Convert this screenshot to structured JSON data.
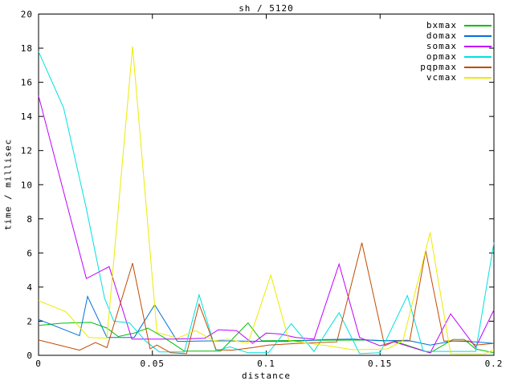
{
  "chart_data": {
    "type": "line",
    "title": "sh / 5120",
    "xlabel": "distance",
    "ylabel": "time / millisec",
    "xlim": [
      0,
      0.2
    ],
    "ylim": [
      0,
      20
    ],
    "grid": false,
    "legend_position": "top-right-inside",
    "axis_color": "#000000",
    "background_color": "#ffffff",
    "x_ticks": [
      0,
      0.05,
      0.1,
      0.15,
      0.2
    ],
    "x_tick_labels": [
      "0",
      "0.05",
      "0.1",
      "0.15",
      "0.2"
    ],
    "y_ticks": [
      0,
      2,
      4,
      6,
      8,
      10,
      12,
      14,
      16,
      18,
      20
    ],
    "y_tick_labels": [
      "0",
      "2",
      "4",
      "6",
      "8",
      "10",
      "12",
      "14",
      "16",
      "18",
      "20"
    ],
    "series": [
      {
        "name": "bxmax",
        "color": "#00c000",
        "points": [
          [
            0,
            1.75
          ],
          [
            0.01,
            1.88
          ],
          [
            0.023,
            1.93
          ],
          [
            0.03,
            1.6
          ],
          [
            0.035,
            1.1
          ],
          [
            0.042,
            1.3
          ],
          [
            0.048,
            1.6
          ],
          [
            0.055,
            1.05
          ],
          [
            0.064,
            0.25
          ],
          [
            0.08,
            0.25
          ],
          [
            0.092,
            1.9
          ],
          [
            0.098,
            0.85
          ],
          [
            0.12,
            0.88
          ],
          [
            0.145,
            0.9
          ],
          [
            0.156,
            0.84
          ],
          [
            0.172,
            0.15
          ],
          [
            0.182,
            0.93
          ],
          [
            0.187,
            0.93
          ],
          [
            0.192,
            0.37
          ],
          [
            0.2,
            0.15
          ]
        ]
      },
      {
        "name": "domax",
        "color": "#0070dd",
        "points": [
          [
            0,
            2.1
          ],
          [
            0.018,
            1.15
          ],
          [
            0.0215,
            3.45
          ],
          [
            0.03,
            1.05
          ],
          [
            0.042,
            1.05
          ],
          [
            0.051,
            2.96
          ],
          [
            0.061,
            0.82
          ],
          [
            0.08,
            0.85
          ],
          [
            0.1,
            0.82
          ],
          [
            0.112,
            0.82
          ],
          [
            0.125,
            0.92
          ],
          [
            0.138,
            0.95
          ],
          [
            0.15,
            0.85
          ],
          [
            0.162,
            0.88
          ],
          [
            0.172,
            0.6
          ],
          [
            0.182,
            0.84
          ],
          [
            0.192,
            0.79
          ],
          [
            0.2,
            0.7
          ]
        ]
      },
      {
        "name": "somax",
        "color": "#c000ff",
        "points": [
          [
            0,
            15.2
          ],
          [
            0.021,
            4.5
          ],
          [
            0.031,
            5.2
          ],
          [
            0.041,
            0.95
          ],
          [
            0.06,
            0.95
          ],
          [
            0.073,
            1.0
          ],
          [
            0.079,
            1.5
          ],
          [
            0.087,
            1.45
          ],
          [
            0.094,
            0.7
          ],
          [
            0.1,
            1.3
          ],
          [
            0.106,
            1.25
          ],
          [
            0.113,
            1.05
          ],
          [
            0.121,
            0.95
          ],
          [
            0.132,
            5.35
          ],
          [
            0.141,
            1.05
          ],
          [
            0.15,
            0.56
          ],
          [
            0.156,
            0.79
          ],
          [
            0.172,
            0.14
          ],
          [
            0.181,
            2.43
          ],
          [
            0.192,
            0.47
          ],
          [
            0.2,
            2.66
          ]
        ]
      },
      {
        "name": "opmax",
        "color": "#00e0e0",
        "points": [
          [
            0,
            17.8
          ],
          [
            0.011,
            14.5
          ],
          [
            0.021,
            8.6
          ],
          [
            0.029,
            3.35
          ],
          [
            0.033,
            2.0
          ],
          [
            0.04,
            1.9
          ],
          [
            0.047,
            0.84
          ],
          [
            0.053,
            0.2
          ],
          [
            0.064,
            0.2
          ],
          [
            0.0705,
            3.55
          ],
          [
            0.078,
            0.25
          ],
          [
            0.084,
            0.5
          ],
          [
            0.092,
            0.15
          ],
          [
            0.101,
            0.15
          ],
          [
            0.111,
            1.85
          ],
          [
            0.121,
            0.23
          ],
          [
            0.132,
            2.5
          ],
          [
            0.141,
            0.1
          ],
          [
            0.15,
            0.15
          ],
          [
            0.162,
            3.5
          ],
          [
            0.169,
            0.23
          ],
          [
            0.192,
            0.23
          ],
          [
            0.2,
            6.6
          ]
        ]
      },
      {
        "name": "pqpmax",
        "color": "#c04a00",
        "points": [
          [
            0,
            0.9
          ],
          [
            0.018,
            0.3
          ],
          [
            0.025,
            0.75
          ],
          [
            0.03,
            0.45
          ],
          [
            0.0413,
            5.4
          ],
          [
            0.049,
            0.38
          ],
          [
            0.052,
            0.6
          ],
          [
            0.058,
            0.15
          ],
          [
            0.065,
            0.1
          ],
          [
            0.0705,
            3.0
          ],
          [
            0.078,
            0.33
          ],
          [
            0.085,
            0.3
          ],
          [
            0.094,
            0.45
          ],
          [
            0.101,
            0.6
          ],
          [
            0.114,
            0.7
          ],
          [
            0.131,
            0.79
          ],
          [
            0.142,
            6.6
          ],
          [
            0.152,
            0.56
          ],
          [
            0.157,
            0.84
          ],
          [
            0.163,
            0.84
          ],
          [
            0.17,
            6.15
          ],
          [
            0.178,
            0.84
          ],
          [
            0.189,
            0.84
          ],
          [
            0.192,
            0.6
          ],
          [
            0.2,
            0.7
          ]
        ]
      },
      {
        "name": "vcmax",
        "color": "#ebeb00",
        "points": [
          [
            0,
            3.2
          ],
          [
            0.012,
            2.55
          ],
          [
            0.022,
            1.05
          ],
          [
            0.03,
            1.0
          ],
          [
            0.0413,
            18.1
          ],
          [
            0.052,
            1.35
          ],
          [
            0.061,
            1.0
          ],
          [
            0.069,
            1.45
          ],
          [
            0.077,
            0.85
          ],
          [
            0.083,
            0.95
          ],
          [
            0.092,
            0.7
          ],
          [
            0.102,
            4.7
          ],
          [
            0.11,
            0.85
          ],
          [
            0.127,
            0.56
          ],
          [
            0.138,
            0.33
          ],
          [
            0.153,
            0.37
          ],
          [
            0.16,
            0.84
          ],
          [
            0.172,
            7.2
          ],
          [
            0.181,
            0.09
          ],
          [
            0.196,
            0.09
          ],
          [
            0.2,
            0.33
          ]
        ]
      }
    ]
  }
}
